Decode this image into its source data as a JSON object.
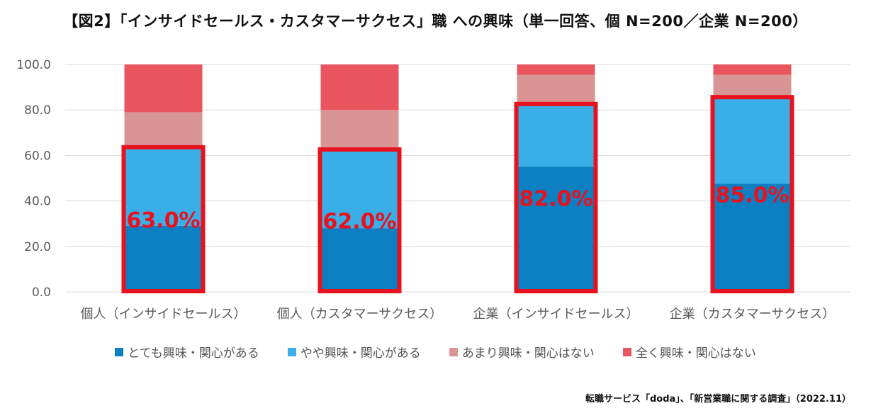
{
  "chart_data": {
    "type": "bar",
    "stacked": true,
    "title": "【図2】「インサイドセールス・カスタマーサクセス」職 への興味（単一回答、個 N=200／企業 N=200）",
    "categories": [
      "個人（インサイドセールス）",
      "個人（カスタマーサクセス）",
      "企業（インサイドセールス）",
      "企業（カスタマーサクセス）"
    ],
    "series": [
      {
        "name": "とても興味・関心がある",
        "color": "#0b7fc1",
        "values": [
          29.0,
          28.0,
          55.0,
          47.5
        ]
      },
      {
        "name": "やや興味・関心がある",
        "color": "#3aaee6",
        "values": [
          34.0,
          34.0,
          27.0,
          37.5
        ]
      },
      {
        "name": "あまり興味・関心はない",
        "color": "#d99593",
        "values": [
          16.0,
          18.0,
          13.5,
          10.5
        ]
      },
      {
        "name": "全く興味・関心はない",
        "color": "#e8555e",
        "values": [
          21.0,
          20.0,
          4.5,
          4.5
        ]
      }
    ],
    "highlight_labels": [
      "63.0%",
      "62.0%",
      "82.0%",
      "85.0%"
    ],
    "highlight_color": "#e8121e",
    "ylim": [
      0,
      100
    ],
    "yticks": [
      "0.0",
      "20.0",
      "40.0",
      "60.0",
      "80.0",
      "100.0"
    ],
    "grid": true,
    "legend_position": "bottom",
    "source": "転職サービス「doda」、「新営業職に関する調査」（2022.11）"
  }
}
